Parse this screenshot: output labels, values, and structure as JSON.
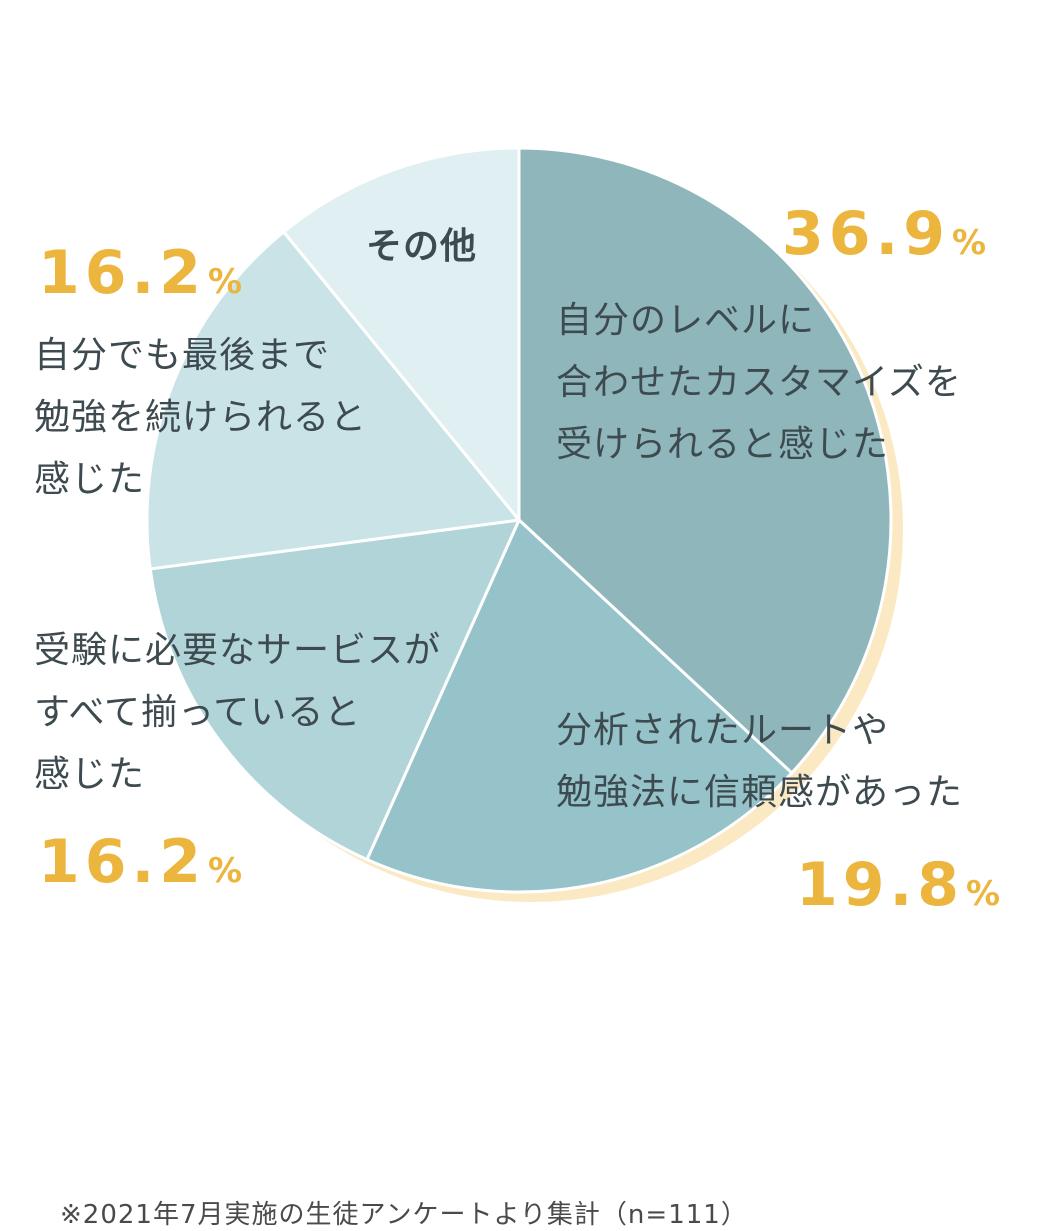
{
  "chart_data": {
    "type": "pie",
    "slices": [
      {
        "label": "自分のレベルに合わせたカスタマイズを受けられると感じた",
        "value": 36.9,
        "color": "#8fb7bb"
      },
      {
        "label": "分析されたルートや勉強法に信頼感があった",
        "value": 19.8,
        "color": "#95c3c9"
      },
      {
        "label": "受験に必要なサービスがすべて揃っていると感じた",
        "value": 16.2,
        "color": "#b0d4d8"
      },
      {
        "label": "自分でも最後まで勉強を続けられると感じた",
        "value": 16.2,
        "color": "#c9e3e7"
      },
      {
        "label": "その他",
        "value": 10.9,
        "color": "#e0eff1"
      }
    ],
    "shadow_color": "#fbe9c4",
    "start_angle": "12 o'clock",
    "direction": "clockwise"
  },
  "labels": {
    "customize": [
      "自分のレベルに",
      "合わせたカスタマイズを",
      "受けられると感じた"
    ],
    "trust": [
      "分析されたルートや",
      "勉強法に信頼感があった"
    ],
    "services": [
      "受験に必要なサービスが",
      "すべて揃っていると",
      "感じた"
    ],
    "continue": [
      "自分でも最後まで",
      "勉強を続けられると",
      "感じた"
    ],
    "other": [
      "その他"
    ]
  },
  "percentages": {
    "customize": {
      "num": "36.9",
      "unit": "%"
    },
    "trust": {
      "num": "19.8",
      "unit": "%"
    },
    "services": {
      "num": "16.2",
      "unit": "%"
    },
    "continue": {
      "num": "16.2",
      "unit": "%"
    }
  },
  "colors": {
    "label_text": "#3d4a4f",
    "percent_text": "#ebb53e"
  },
  "footnote": "※2021年7月実施の生徒アンケートより集計（n=111）"
}
